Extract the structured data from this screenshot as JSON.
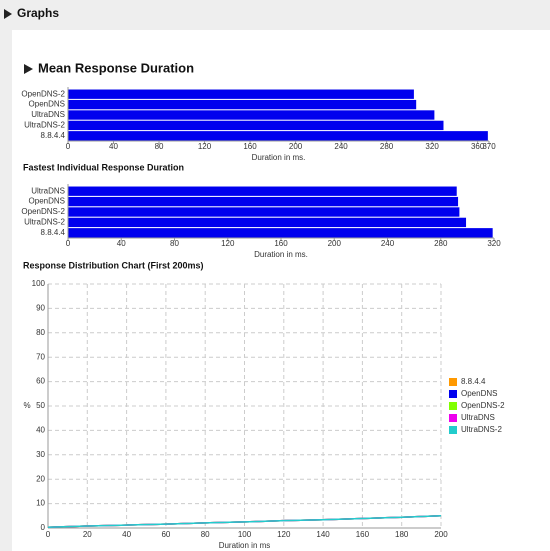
{
  "page": {
    "title": "Graphs"
  },
  "chart_data": [
    {
      "type": "hbar",
      "title": "Mean Response Duration",
      "x_label": "Duration in ms.",
      "categories": [
        "OpenDNS-2",
        "OpenDNS",
        "UltraDNS",
        "UltraDNS-2",
        "8.8.4.4"
      ],
      "values": [
        304,
        306,
        322,
        330,
        369
      ],
      "color": "#0000ee",
      "xlim": [
        0,
        370
      ],
      "xticks": [
        0,
        40,
        80,
        120,
        160,
        200,
        240,
        280,
        320,
        360,
        370
      ],
      "grid": false
    },
    {
      "type": "hbar",
      "title": "Fastest Individual Response Duration",
      "x_label": "Duration in ms.",
      "categories": [
        "UltraDNS",
        "OpenDNS",
        "OpenDNS-2",
        "UltraDNS-2",
        "8.8.4.4"
      ],
      "values": [
        292,
        293,
        294,
        299,
        319
      ],
      "color": "#0000ee",
      "xlim": [
        0,
        320
      ],
      "xticks": [
        0,
        40,
        80,
        120,
        160,
        200,
        240,
        280,
        320
      ],
      "grid": false
    },
    {
      "type": "line",
      "title": "Response Distribution Chart (First 200ms)",
      "x_label": "Duration in ms",
      "y_label": "%",
      "x": [
        0,
        20,
        40,
        60,
        80,
        100,
        120,
        140,
        160,
        180,
        200
      ],
      "series": [
        {
          "name": "8.8.4.4",
          "color": "#ff9900",
          "values": [
            0.3,
            0.8,
            1.2,
            1.6,
            2.1,
            2.5,
            3,
            3.4,
            3.9,
            4.4,
            5
          ]
        },
        {
          "name": "OpenDNS",
          "color": "#0000ee",
          "values": [
            0.3,
            0.8,
            1.2,
            1.6,
            2.1,
            2.5,
            3,
            3.4,
            3.9,
            4.4,
            5
          ]
        },
        {
          "name": "OpenDNS-2",
          "color": "#80ff00",
          "values": [
            0.3,
            0.8,
            1.2,
            1.6,
            2.1,
            2.5,
            3,
            3.4,
            3.9,
            4.4,
            5
          ]
        },
        {
          "name": "UltraDNS",
          "color": "#ee00ee",
          "values": [
            0.3,
            0.8,
            1.2,
            1.6,
            2.1,
            2.5,
            3,
            3.4,
            3.9,
            4.4,
            5
          ]
        },
        {
          "name": "UltraDNS-2",
          "color": "#22cccc",
          "values": [
            0.3,
            0.8,
            1.2,
            1.6,
            2.1,
            2.5,
            3,
            3.4,
            3.9,
            4.4,
            5
          ]
        }
      ],
      "xlim": [
        0,
        200
      ],
      "xticks": [
        0,
        20,
        40,
        60,
        80,
        100,
        120,
        140,
        160,
        180,
        200
      ],
      "ylim": [
        0,
        100
      ],
      "yticks": [
        0,
        10,
        20,
        30,
        40,
        50,
        60,
        70,
        80,
        90,
        100
      ],
      "grid": true,
      "legend": "right"
    }
  ]
}
